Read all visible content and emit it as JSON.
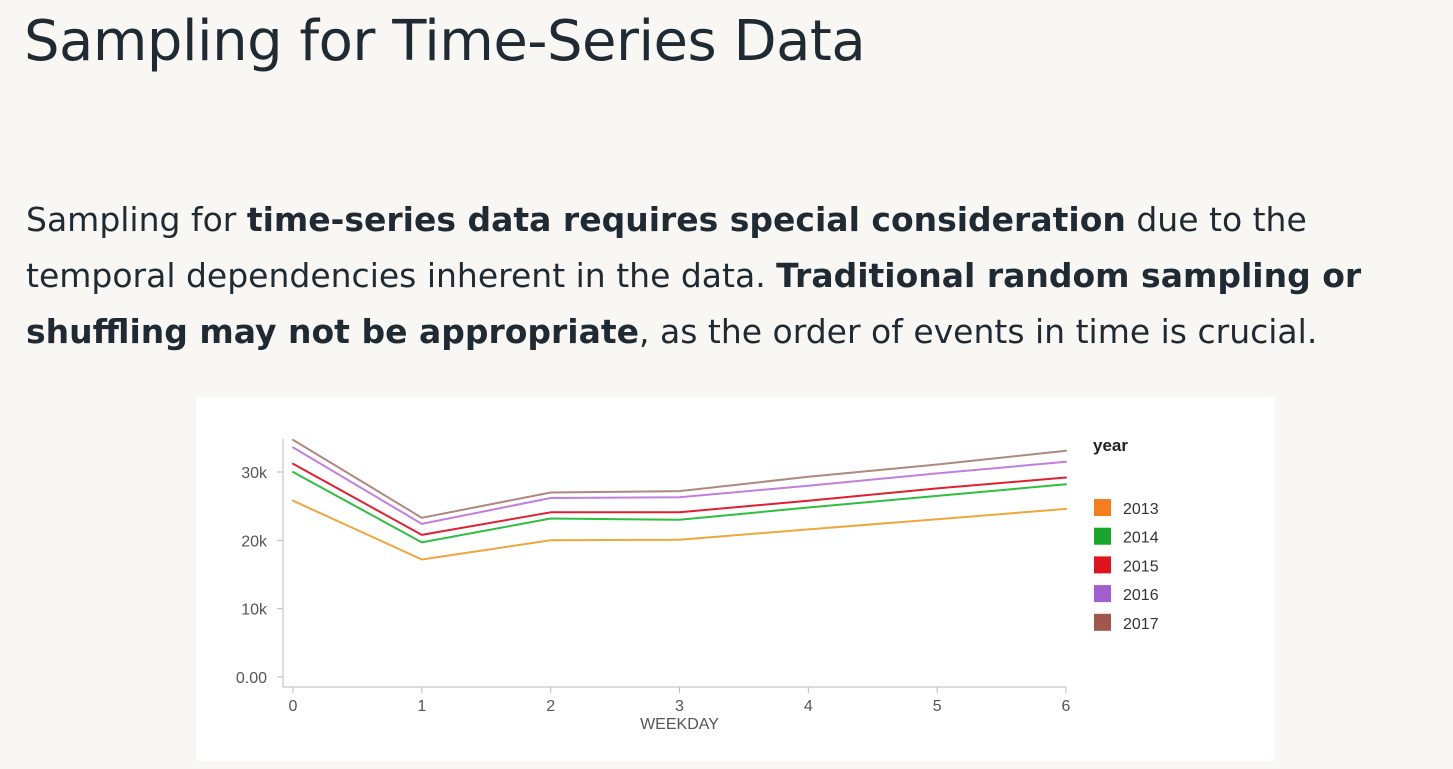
{
  "slide": {
    "title": "Sampling for Time-Series Data",
    "body": {
      "p1": "Sampling for ",
      "s1": "time-series data requires special consideration",
      "p2": " due to the temporal dependencies inherent in the data. ",
      "s2": "Traditional random sampling or shuffling may not be appropriate",
      "p3": ", as the order of events in time is crucial."
    }
  },
  "chart_data": {
    "type": "line",
    "xlabel": "WEEKDAY",
    "ylabel": "",
    "x": [
      0,
      1,
      2,
      3,
      4,
      5,
      6
    ],
    "xlim": [
      0,
      6
    ],
    "ylim": [
      0,
      32000
    ],
    "yticks": [
      0,
      10000,
      20000,
      30000
    ],
    "ytick_labels": [
      "0.00",
      "10k",
      "20k",
      "30k"
    ],
    "xtick_labels": [
      "0",
      "1",
      "2",
      "3",
      "4",
      "5",
      "6"
    ],
    "grid": false,
    "legend": {
      "title": "year",
      "placement": "right"
    },
    "series": [
      {
        "name": "2013",
        "color": "#f0a63c",
        "legend_color": "#f57c1f",
        "values": [
          25800,
          17200,
          20000,
          20100,
          21600,
          23100,
          24600
        ]
      },
      {
        "name": "2014",
        "color": "#2fbf3f",
        "legend_color": "#1aa62a",
        "values": [
          30000,
          19700,
          23200,
          23000,
          24800,
          26500,
          28200
        ]
      },
      {
        "name": "2015",
        "color": "#e02030",
        "legend_color": "#e0141e",
        "values": [
          31200,
          20800,
          24100,
          24100,
          25800,
          27600,
          29200
        ]
      },
      {
        "name": "2016",
        "color": "#c27fe0",
        "legend_color": "#a35fd0",
        "values": [
          33600,
          22400,
          26200,
          26300,
          28000,
          29800,
          31500
        ]
      },
      {
        "name": "2017",
        "color": "#b08880",
        "legend_color": "#a0584e",
        "values": [
          34700,
          23300,
          27000,
          27200,
          29300,
          31100,
          33100
        ]
      }
    ]
  }
}
